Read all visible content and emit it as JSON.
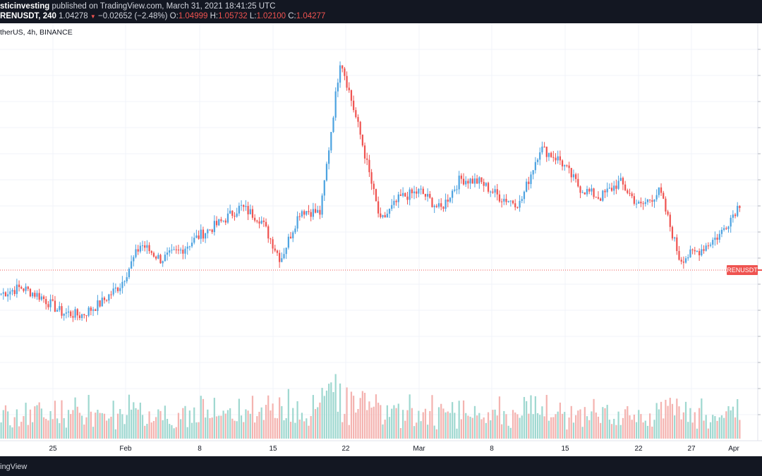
{
  "header": {
    "author": "sticinvesting",
    "published_text": "published on TradingView.com, March 31, 2021 18:41:25 UTC",
    "symbol": "RENUSDT, 240",
    "last": "1.04278",
    "change": "−0.02652 (−2.48%)",
    "o_label": "O:",
    "o_value": "1.04999",
    "h_label": "H:",
    "h_value": "1.05732",
    "l_label": "L:",
    "l_value": "1.02100",
    "c_label": "C:",
    "c_value": "1.04277"
  },
  "subtitle": "therUS, 4h, BINANCE",
  "footer": {
    "brand": "ingView"
  },
  "price_label": "RENUSDT",
  "colors": {
    "up": "#26a69a",
    "down": "#ef5350",
    "up_bar": "#4da3e0",
    "grid": "#f0f3fa",
    "panel": "#131722"
  },
  "chart_data": {
    "type": "candlestick",
    "interval": "4h",
    "exchange": "BINANCE",
    "x_ticks": [
      "25",
      "Feb",
      "8",
      "15",
      "22",
      "Mar",
      "8",
      "15",
      "22",
      "27",
      "Apr"
    ],
    "last_close": 1.04277,
    "approx_close_path_relative": [
      0.19,
      0.21,
      0.18,
      0.13,
      0.12,
      0.16,
      0.22,
      0.35,
      0.3,
      0.33,
      0.38,
      0.42,
      0.47,
      0.43,
      0.3,
      0.46,
      0.45,
      0.95,
      0.7,
      0.42,
      0.5,
      0.52,
      0.46,
      0.56,
      0.55,
      0.5,
      0.48,
      0.66,
      0.62,
      0.53,
      0.5,
      0.55,
      0.47,
      0.52,
      0.3,
      0.33,
      0.38,
      0.48
    ]
  }
}
